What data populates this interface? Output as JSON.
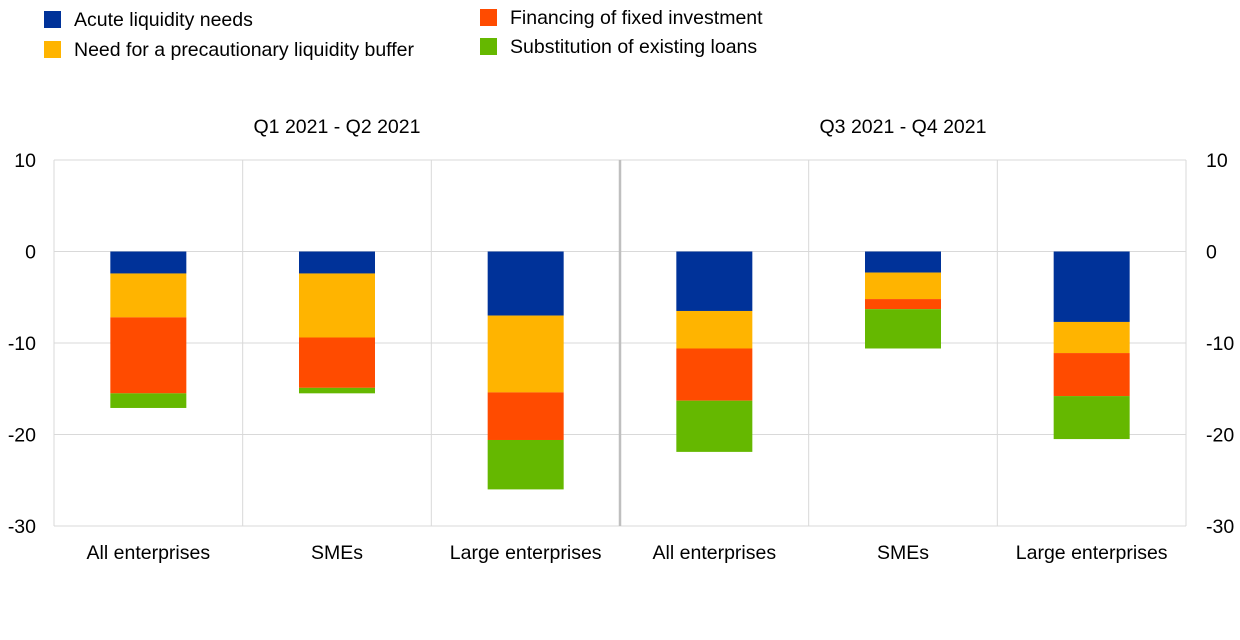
{
  "chart_data": {
    "type": "bar",
    "stacked": true,
    "legend": {
      "placement": "top-left",
      "entries": [
        {
          "label": "Acute liquidity needs",
          "color": "#003299"
        },
        {
          "label": "Need for a precautionary liquidity buffer",
          "color": "#FFB400"
        },
        {
          "label": "Financing of fixed investment",
          "color": "#FF4B00"
        },
        {
          "label": "Substitution of existing loans",
          "color": "#65B800"
        }
      ]
    },
    "panels": [
      {
        "title": "Q1 2021 - Q2 2021",
        "categories": [
          "All enterprises",
          "SMEs",
          "Large enterprises"
        ],
        "series": [
          {
            "name": "Acute liquidity needs",
            "values": [
              -2.4,
              -2.4,
              -7.0
            ]
          },
          {
            "name": "Need for a precautionary liquidity buffer",
            "values": [
              -4.8,
              -7.0,
              -8.4
            ]
          },
          {
            "name": "Financing of fixed investment",
            "values": [
              -8.3,
              -5.5,
              -5.2
            ]
          },
          {
            "name": "Substitution of existing loans",
            "values": [
              -1.6,
              -0.6,
              -5.4
            ]
          }
        ]
      },
      {
        "title": "Q3 2021 - Q4 2021",
        "categories": [
          "All enterprises",
          "SMEs",
          "Large enterprises"
        ],
        "series": [
          {
            "name": "Acute liquidity needs",
            "values": [
              -6.5,
              -2.3,
              -7.7
            ]
          },
          {
            "name": "Need for a precautionary liquidity buffer",
            "values": [
              -4.1,
              -2.9,
              -3.4
            ]
          },
          {
            "name": "Financing of fixed investment",
            "values": [
              -5.7,
              -1.1,
              -4.7
            ]
          },
          {
            "name": "Substitution of existing loans",
            "values": [
              -5.6,
              -4.3,
              -4.7
            ]
          }
        ]
      }
    ],
    "xlabel": "",
    "ylabel": "",
    "ylim": [
      -30,
      10
    ],
    "yticks": [
      10,
      0,
      -10,
      -20,
      -30
    ],
    "ytick_labels": [
      "10",
      "0",
      "-10",
      "-20",
      "-30"
    ],
    "grid": true
  }
}
